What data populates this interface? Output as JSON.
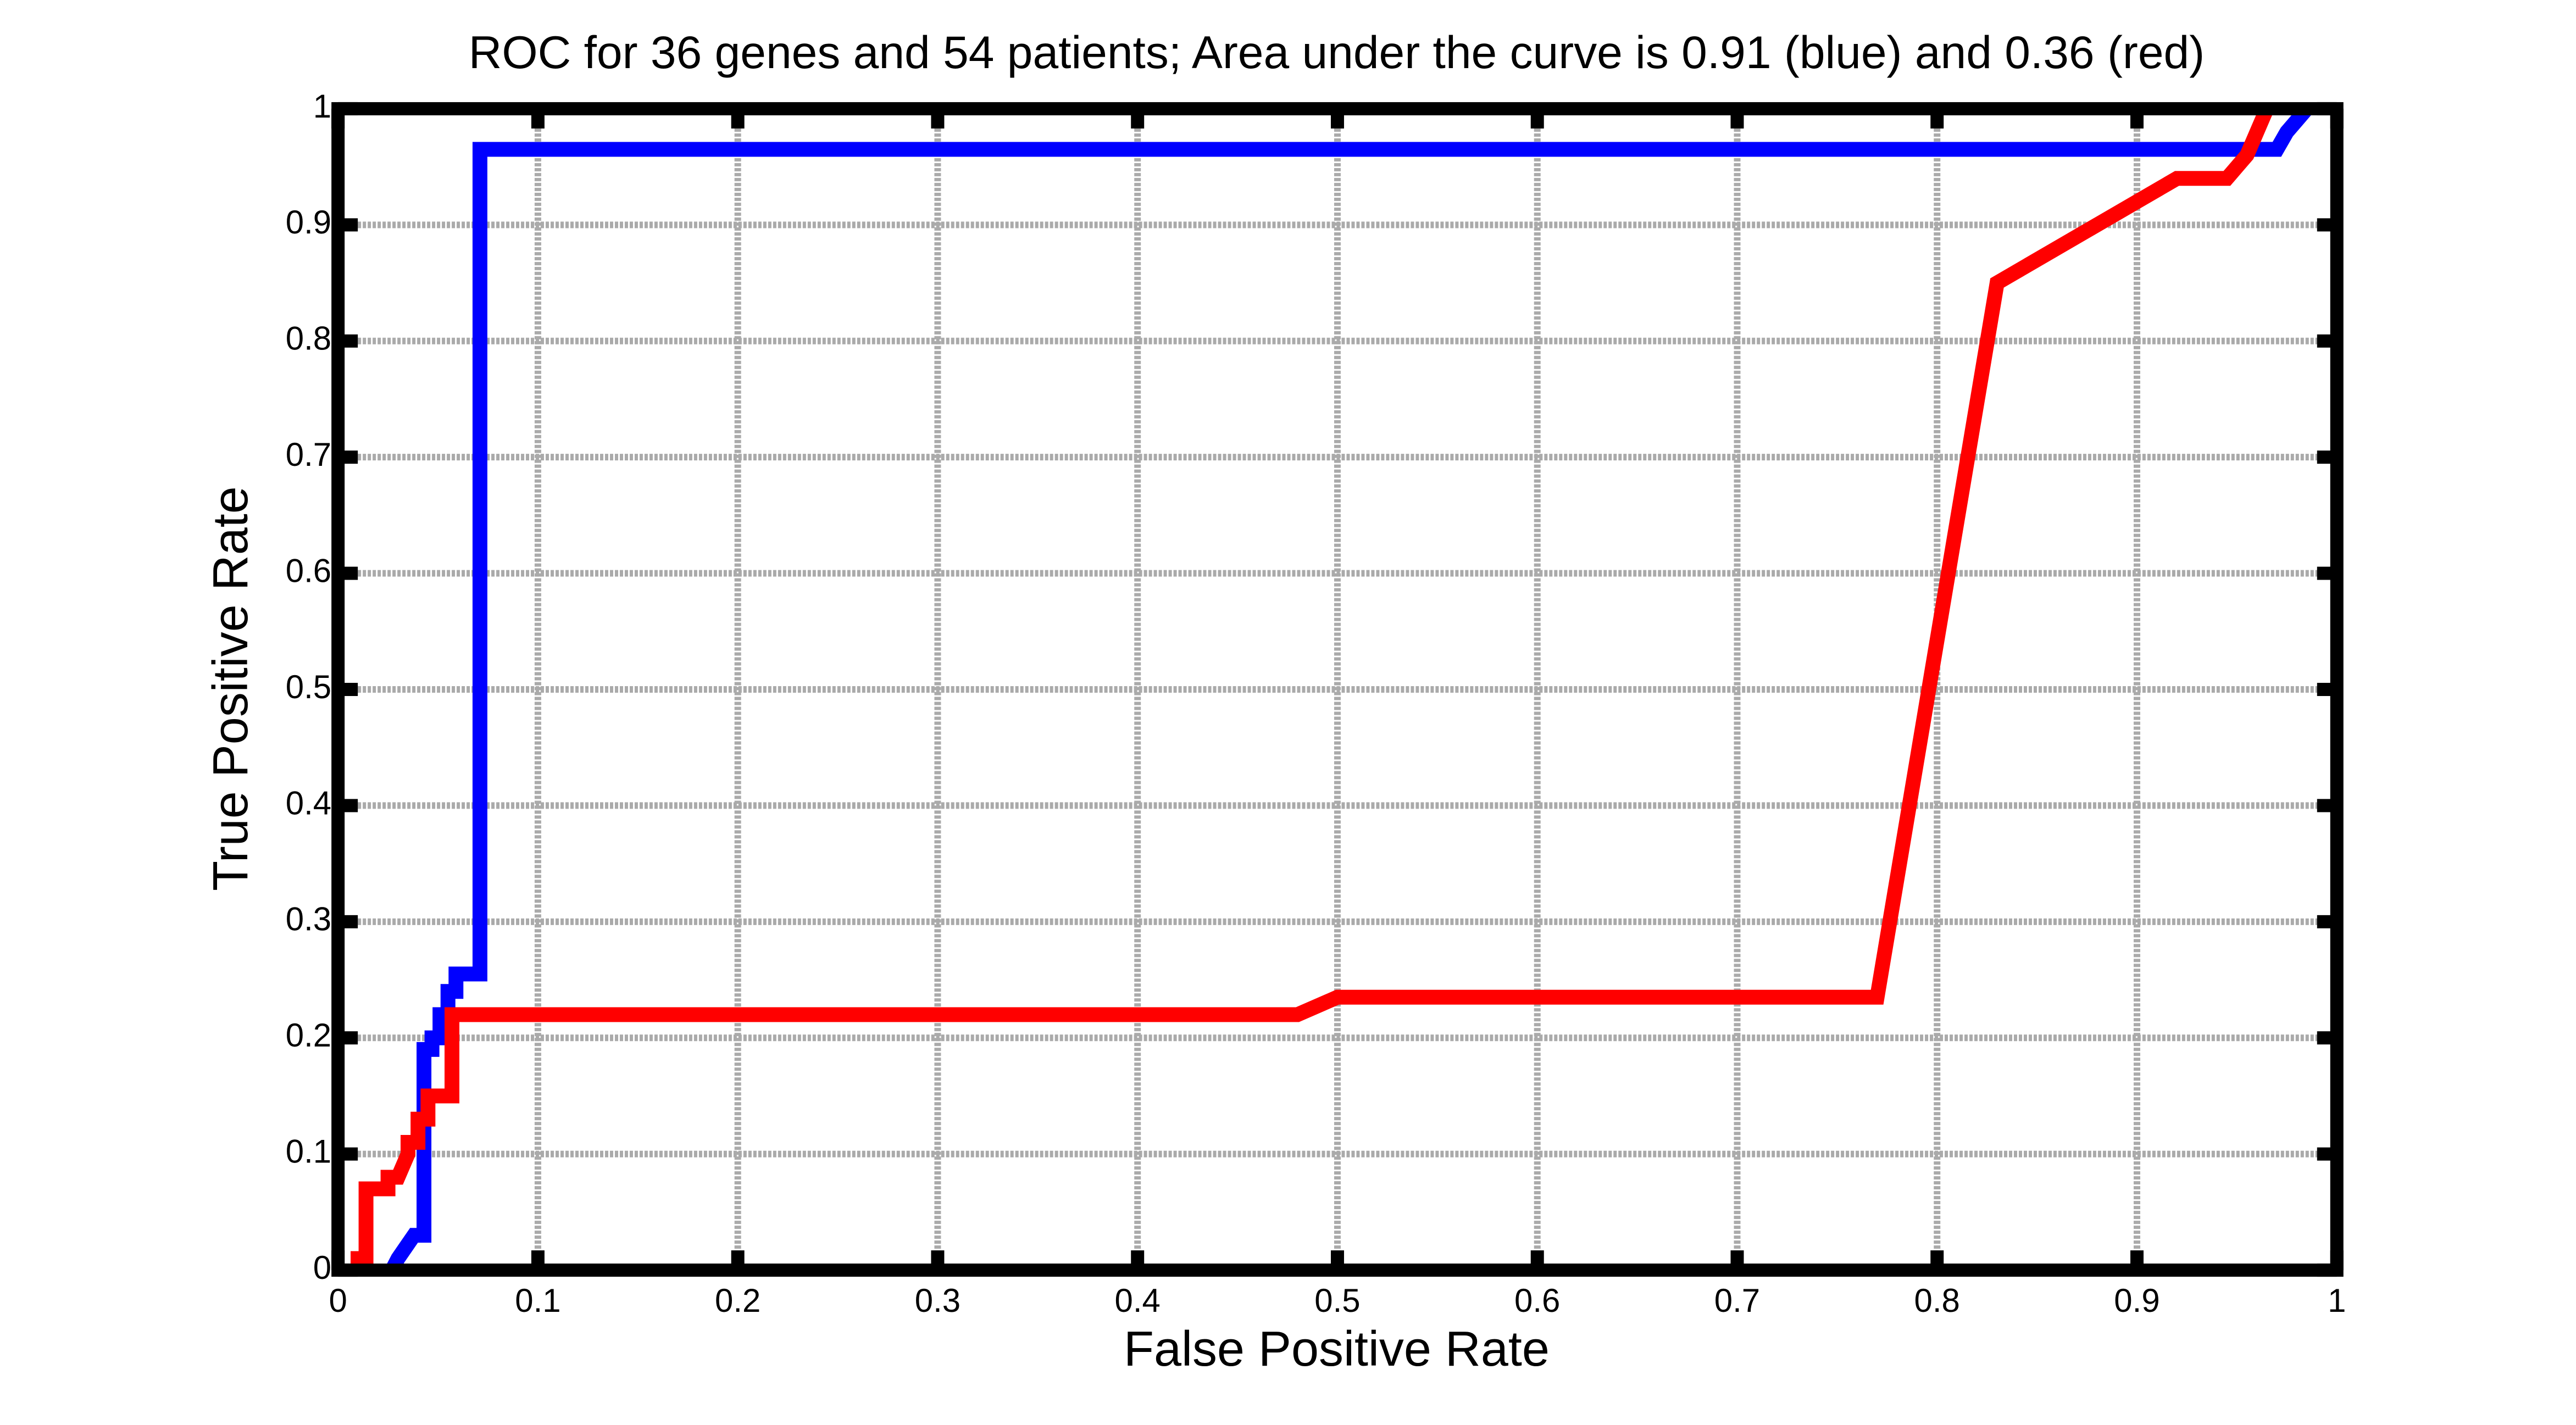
{
  "chart_data": {
    "type": "line",
    "title": "ROC for 36 genes and 54 patients; Area under the curve is 0.91 (blue) and  0.36 (red)",
    "xlabel": "False Positive Rate",
    "ylabel": "True Positive Rate",
    "xlim": [
      0,
      1
    ],
    "ylim": [
      0,
      1
    ],
    "xticks": [
      0,
      0.1,
      0.2,
      0.3,
      0.4,
      0.5,
      0.6,
      0.7,
      0.8,
      0.9,
      1
    ],
    "yticks": [
      0,
      0.1,
      0.2,
      0.3,
      0.4,
      0.5,
      0.6,
      0.7,
      0.8,
      0.9,
      1
    ],
    "grid": true,
    "series": [
      {
        "color": "#0000ff",
        "x": [
          0.027,
          0.03,
          0.034,
          0.038,
          0.043,
          0.043,
          0.047,
          0.047,
          0.051,
          0.051,
          0.055,
          0.055,
          0.059,
          0.059,
          0.071,
          0.071,
          0.97,
          0.975,
          0.985
        ],
        "values": [
          0,
          0.01,
          0.02,
          0.03,
          0.03,
          0.19,
          0.19,
          0.2,
          0.2,
          0.22,
          0.22,
          0.24,
          0.24,
          0.255,
          0.255,
          0.965,
          0.965,
          0.98,
          1
        ]
      },
      {
        "color": "#ff0000",
        "x": [
          0.01,
          0.01,
          0.014,
          0.014,
          0.025,
          0.025,
          0.03,
          0.035,
          0.035,
          0.04,
          0.04,
          0.045,
          0.045,
          0.057,
          0.057,
          0.48,
          0.5,
          0.77,
          0.83,
          0.92,
          0.945,
          0.95,
          0.955,
          0.96,
          0.965
        ],
        "values": [
          0,
          0.01,
          0.01,
          0.07,
          0.07,
          0.08,
          0.08,
          0.1,
          0.11,
          0.11,
          0.13,
          0.13,
          0.15,
          0.15,
          0.22,
          0.22,
          0.235,
          0.235,
          0.85,
          0.94,
          0.94,
          0.95,
          0.96,
          0.98,
          1
        ]
      }
    ]
  }
}
